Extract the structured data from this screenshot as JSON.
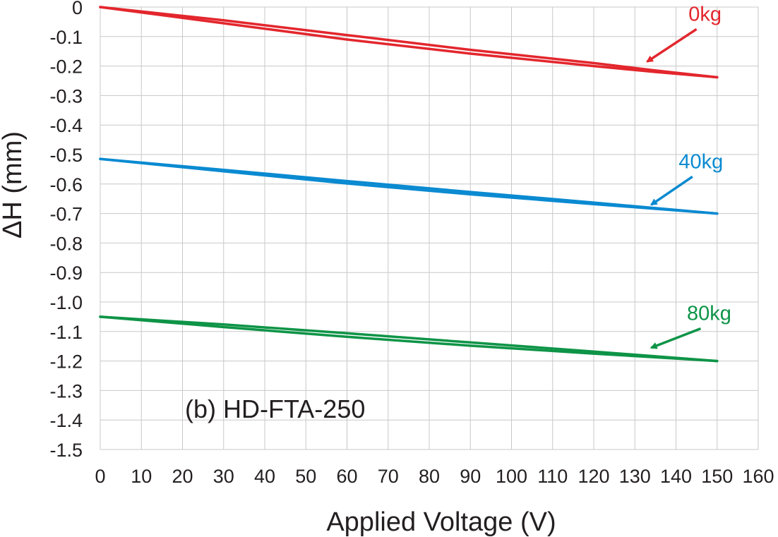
{
  "chart_data": {
    "type": "line",
    "xlabel": "Applied Voltage (V)",
    "ylabel": "ΔH (mm)",
    "annotation": "(b) HD-FTA-250",
    "xlim": [
      0,
      160
    ],
    "ylim": [
      -1.5,
      0
    ],
    "x_ticks": [
      0,
      10,
      20,
      30,
      40,
      50,
      60,
      70,
      80,
      90,
      100,
      110,
      120,
      130,
      140,
      150,
      160
    ],
    "y_ticks": [
      "0",
      "-0.1",
      "-0.2",
      "-0.3",
      "-0.4",
      "-0.5",
      "-0.6",
      "-0.7",
      "-0.8",
      "-0.9",
      "-1.0",
      "-1.1",
      "-1.2",
      "-1.3",
      "-1.4",
      "-1.5"
    ],
    "grid": true,
    "series": [
      {
        "name": "0kg",
        "color": "#e3262d",
        "loading": {
          "x": [
            0,
            30,
            60,
            90,
            120,
            135,
            150
          ],
          "y": [
            0,
            -0.055,
            -0.11,
            -0.158,
            -0.2,
            -0.22,
            -0.238
          ]
        },
        "unloading": {
          "x": [
            150,
            135,
            120,
            90,
            60,
            30,
            0
          ],
          "y": [
            -0.238,
            -0.215,
            -0.19,
            -0.145,
            -0.095,
            -0.045,
            0
          ]
        },
        "label_arrow": {
          "tip": [
            133,
            -0.185
          ],
          "tail": [
            145,
            -0.075
          ]
        }
      },
      {
        "name": "40kg",
        "color": "#0a8ad1",
        "loading": {
          "x": [
            0,
            30,
            60,
            90,
            120,
            150
          ],
          "y": [
            -0.515,
            -0.557,
            -0.598,
            -0.635,
            -0.668,
            -0.7
          ]
        },
        "unloading": {
          "x": [
            150,
            120,
            90,
            60,
            30,
            0
          ],
          "y": [
            -0.7,
            -0.663,
            -0.627,
            -0.59,
            -0.552,
            -0.515
          ]
        },
        "label_arrow": {
          "tip": [
            134,
            -0.67
          ],
          "tail": [
            144,
            -0.575
          ]
        }
      },
      {
        "name": "80kg",
        "color": "#0e9447",
        "loading": {
          "x": [
            0,
            30,
            60,
            90,
            120,
            150
          ],
          "y": [
            -1.05,
            -1.085,
            -1.118,
            -1.148,
            -1.175,
            -1.2
          ]
        },
        "unloading": {
          "x": [
            150,
            120,
            90,
            60,
            30,
            0
          ],
          "y": [
            -1.2,
            -1.168,
            -1.137,
            -1.106,
            -1.076,
            -1.05
          ]
        },
        "label_arrow": {
          "tip": [
            134,
            -1.155
          ],
          "tail": [
            146,
            -1.09
          ]
        }
      }
    ]
  }
}
